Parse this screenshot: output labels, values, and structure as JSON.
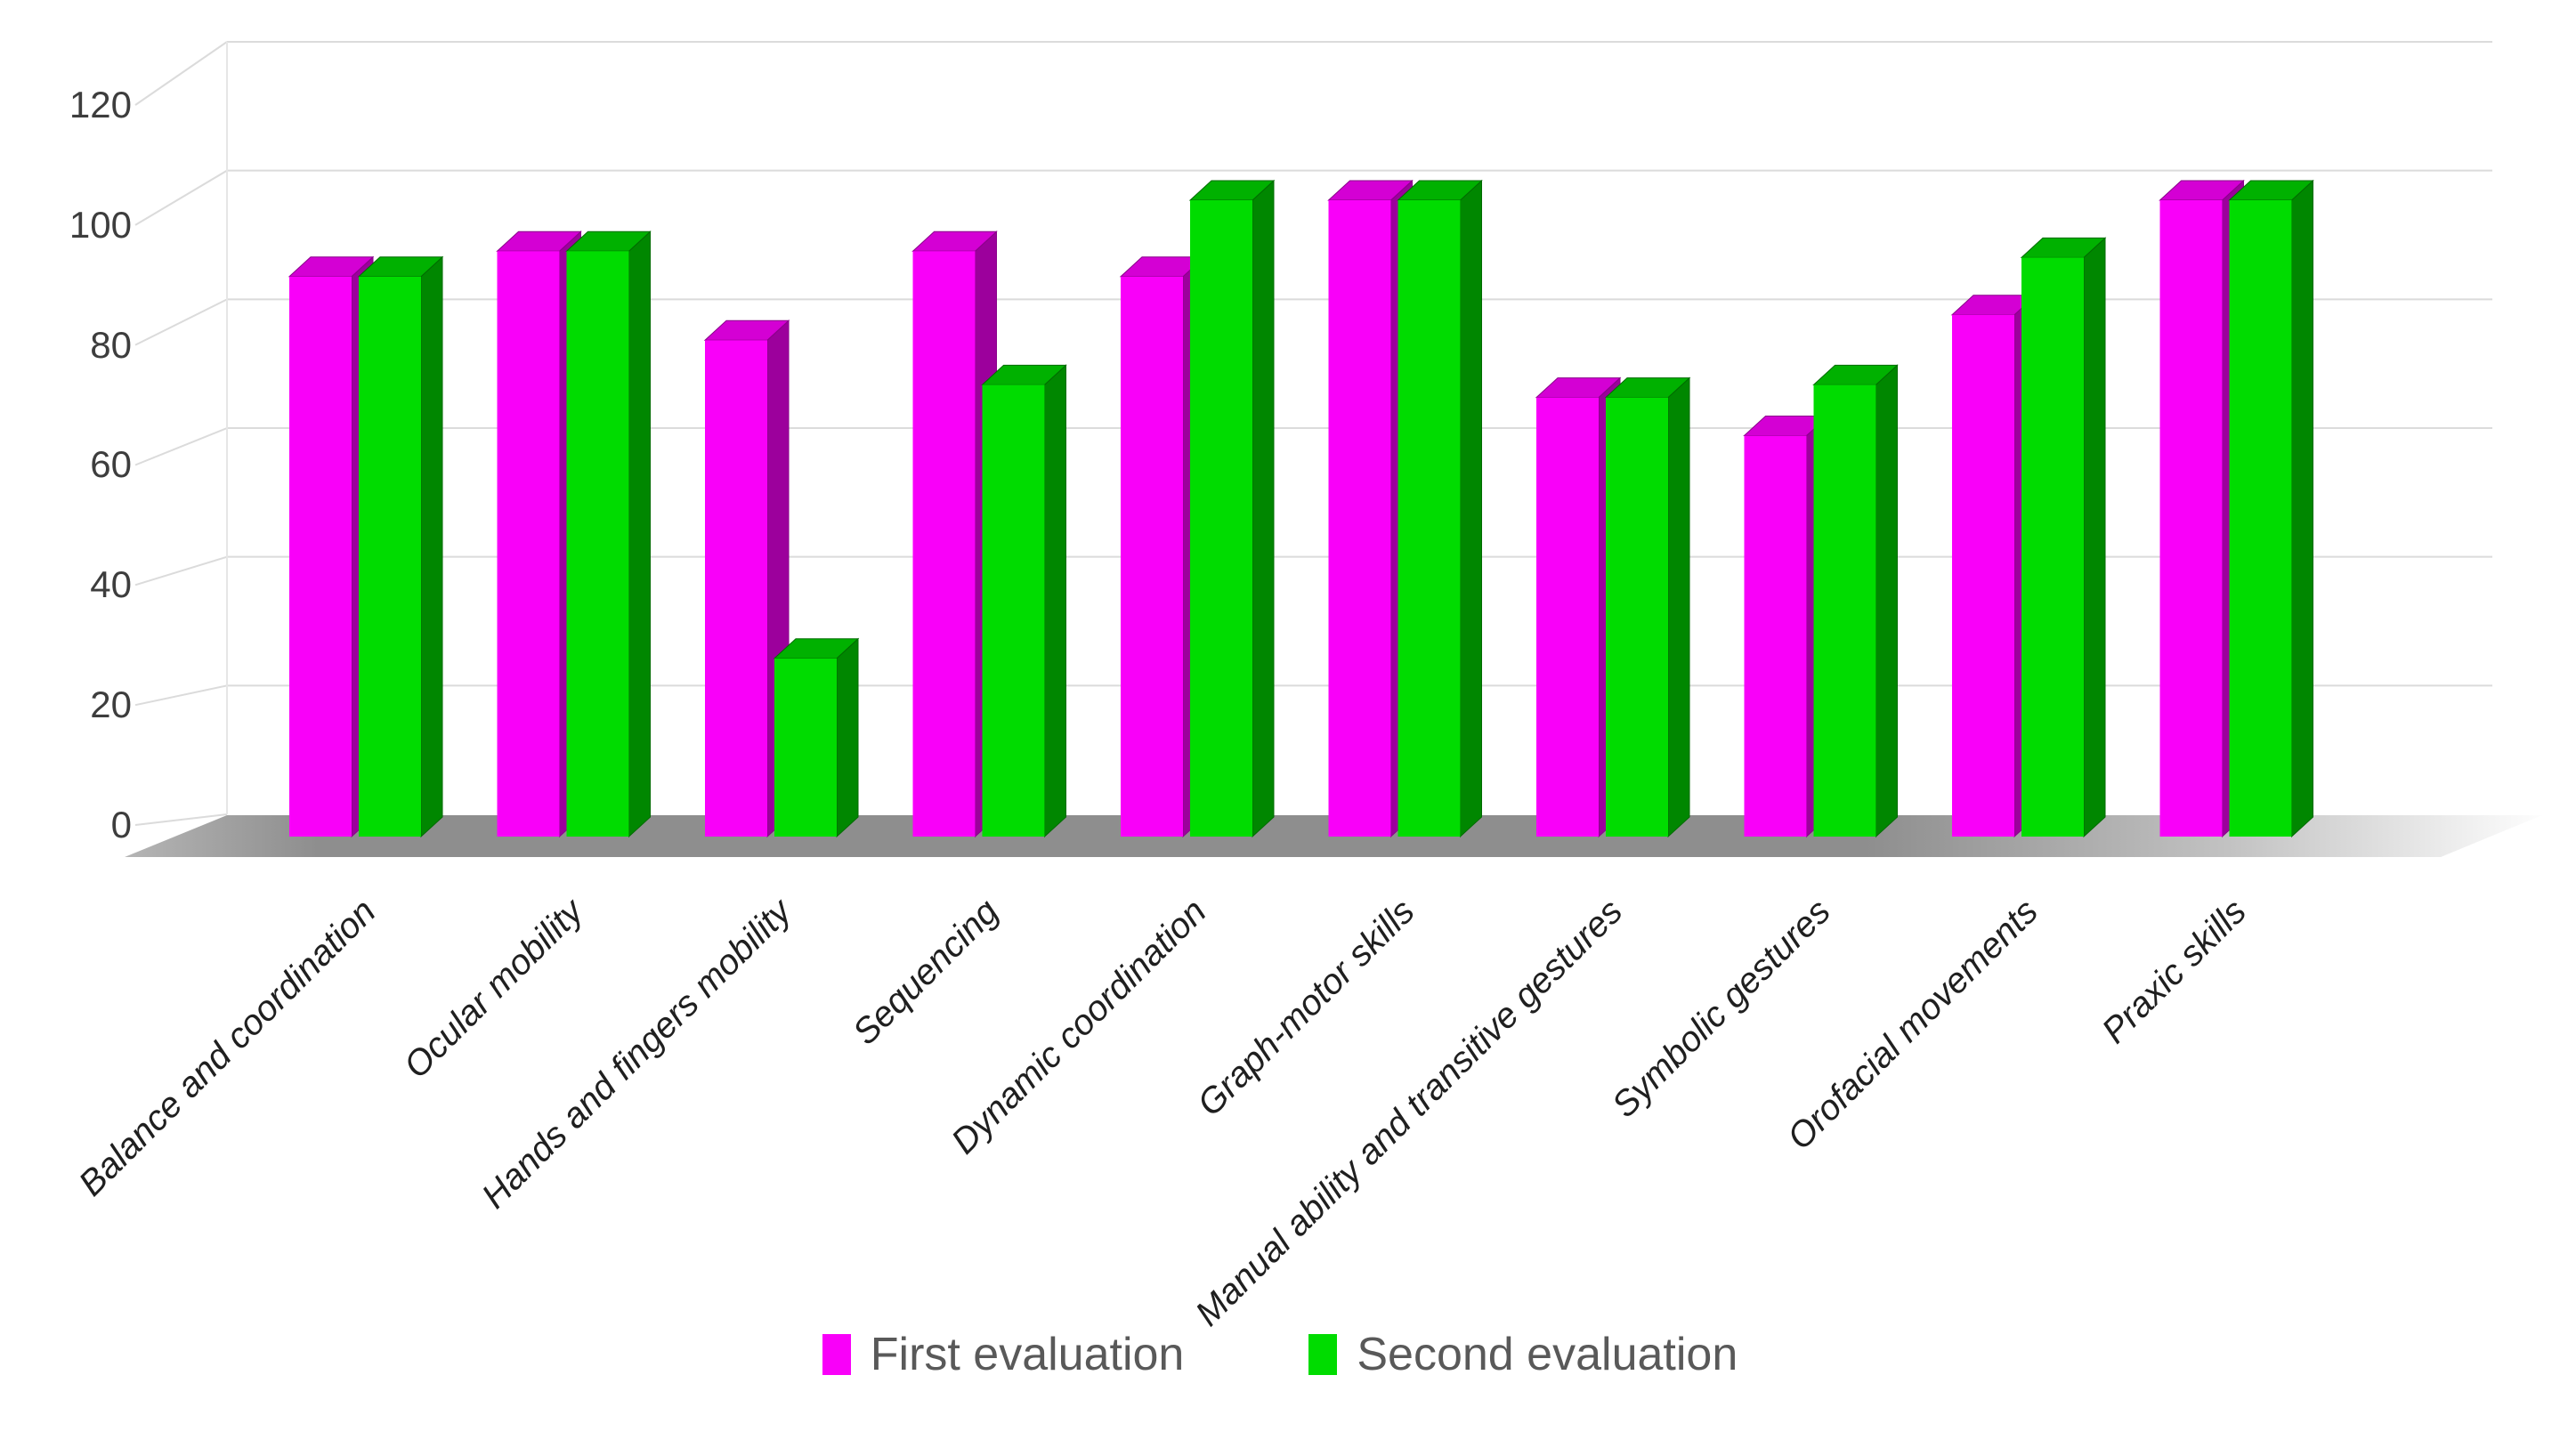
{
  "chart_data": {
    "type": "bar",
    "style": "3d-clustered-column",
    "title": "",
    "xlabel": "",
    "ylabel": "",
    "categories": [
      "Balance and coordination",
      "Ocular mobility",
      "Hands and fingers mobility",
      "Sequencing",
      "Dynamic coordination",
      "Graph-motor skills",
      "Manual ability and transitive gestures",
      "Symbolic gestures",
      "Orofacial movements",
      "Praxic skills"
    ],
    "series": [
      {
        "name": "First evaluation",
        "color": "#F900F9",
        "values": [
          88,
          92,
          78,
          92,
          88,
          100,
          69,
          63,
          82,
          100
        ]
      },
      {
        "name": "Second evaluation",
        "color": "#00DC00",
        "values": [
          88,
          92,
          28,
          71,
          100,
          100,
          69,
          71,
          91,
          100
        ]
      }
    ],
    "ylim": [
      0,
      120
    ],
    "yticks": [
      0,
      20,
      40,
      60,
      80,
      100,
      120
    ],
    "grid": "horizontal",
    "legend_position": "bottom"
  },
  "legend": {
    "items": [
      {
        "label": "First evaluation",
        "color": "#F900F9"
      },
      {
        "label": "Second evaluation",
        "color": "#00DC00"
      }
    ]
  },
  "colors": {
    "series_faces": [
      {
        "front": "#F900F9",
        "top": "#D400D4",
        "side": "#9C009C",
        "edge": "#8A008A"
      },
      {
        "front": "#00DC00",
        "top": "#00B100",
        "side": "#008700",
        "edge": "#006B00"
      }
    ],
    "gridline": "#DBDBDB",
    "wall_edge": "#E6E6E6",
    "floor_dark": "#8E8E8E",
    "floor_light": "#B5B5B5",
    "tick_text": "#3D3D3D",
    "category_text": "#1F1F1F",
    "legend_text": "#595959",
    "background": "#FFFFFF"
  }
}
